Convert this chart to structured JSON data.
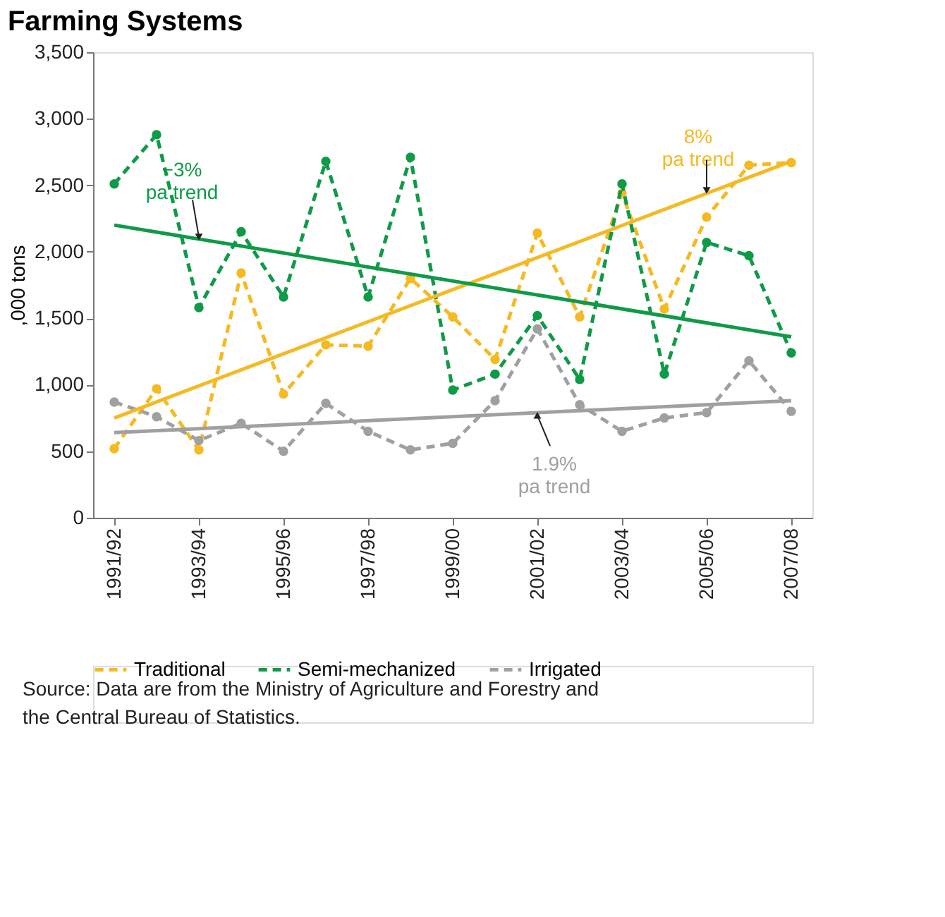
{
  "chart_data": {
    "type": "line",
    "title": "Farming Systems",
    "ylabel": ",000 tons",
    "categories": [
      "1991/92",
      null,
      "1993/94",
      null,
      "1995/96",
      null,
      "1997/98",
      null,
      "1999/00",
      null,
      "2001/02",
      null,
      "2003/04",
      null,
      "2005/06",
      null,
      "2007/08"
    ],
    "series": [
      {
        "name": "Traditional",
        "color": "#f5b921",
        "marker": "circle",
        "line_style": "dashed",
        "values": [
          520,
          970,
          510,
          1840,
          930,
          1300,
          1290,
          1800,
          1510,
          1190,
          2140,
          1510,
          2440,
          1570,
          2260,
          2650,
          2670
        ]
      },
      {
        "name": "Semi-mechanized",
        "color": "#0f9a48",
        "marker": "circle",
        "line_style": "dashed",
        "values": [
          2510,
          2880,
          1580,
          2150,
          1660,
          2680,
          1660,
          2710,
          960,
          1080,
          1520,
          1040,
          2510,
          1080,
          2070,
          1970,
          1240
        ]
      },
      {
        "name": "Irrigated",
        "color": "#a0a0a0",
        "marker": "circle",
        "line_style": "dashed",
        "values": [
          870,
          760,
          580,
          710,
          500,
          860,
          650,
          510,
          560,
          880,
          1420,
          850,
          650,
          750,
          790,
          1180,
          800
        ]
      },
      {
        "type": "line",
        "color": "#f5b921",
        "marker": "none",
        "line_style": "solid",
        "x": [
          "1991/92",
          "2007/08"
        ],
        "values": [
          750,
          2680
        ]
      },
      {
        "type": "line",
        "color": "#0f9a48",
        "marker": "none",
        "line_style": "solid",
        "x": [
          "1991/92",
          "2007/08"
        ],
        "values": [
          2200,
          1360
        ]
      },
      {
        "type": "line",
        "color": "#a0a0a0",
        "marker": "none",
        "line_style": "solid",
        "x": [
          "1991/92",
          "2007/08"
        ],
        "values": [
          640,
          880
        ]
      }
    ],
    "ylim": [
      0,
      3500
    ],
    "yticks": [
      0,
      500,
      {
        "value": 1000,
        "label": "1,000"
      },
      {
        "value": 1500,
        "label": "1,500"
      },
      {
        "value": 2000,
        "label": "2,000"
      },
      {
        "value": 2500,
        "label": "2,500"
      },
      {
        "value": 3000,
        "label": "3,000"
      },
      {
        "value": 3500,
        "label": "3,500"
      }
    ],
    "grid": false,
    "legend": "bottom",
    "annotations": [
      {
        "text": "−3%\npa trend",
        "x": "1993/94",
        "y": 2090
      },
      {
        "text": "8%\npa trend",
        "x": "2005/06",
        "y": 2440
      },
      {
        "text": "1.9%\npa trend",
        "x": "2001/02",
        "y": 790
      },
      "Source: Data are from the Ministry of Agriculture and Forestry and the Central Bureau of Statistics."
    ]
  }
}
